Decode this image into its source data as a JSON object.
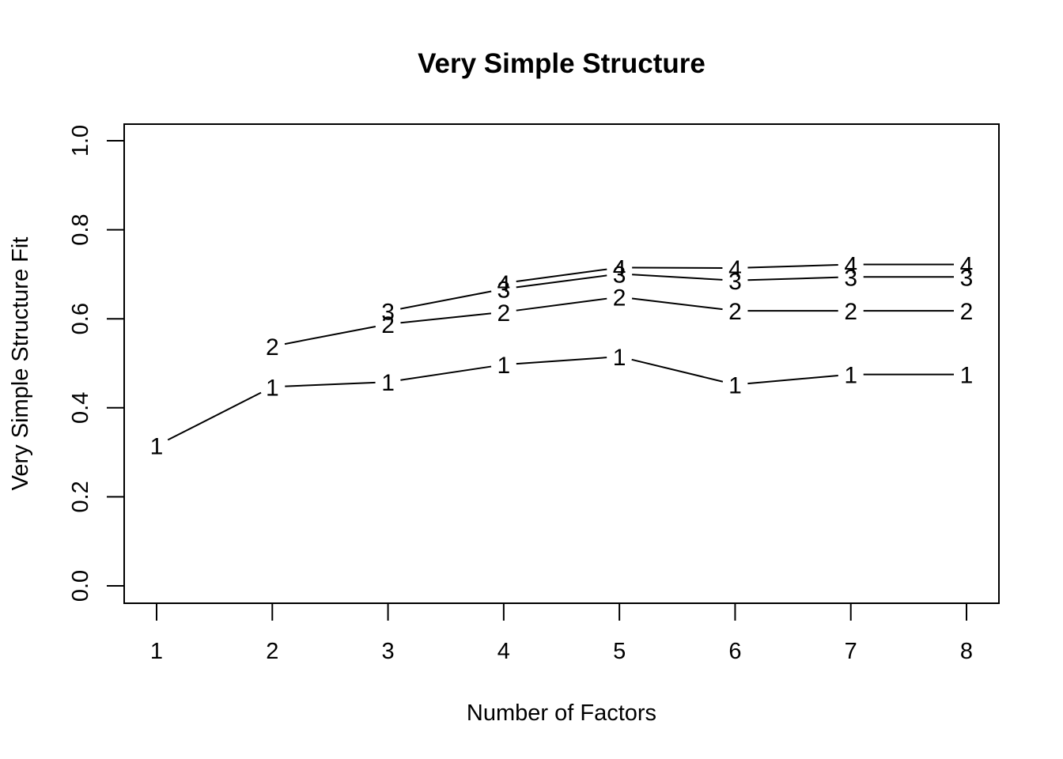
{
  "chart_data": {
    "type": "line",
    "title": "Very Simple Structure",
    "xlabel": "Number of Factors",
    "ylabel": "Very Simple Structure Fit",
    "x": [
      1,
      2,
      3,
      4,
      5,
      6,
      7,
      8
    ],
    "xlim": [
      1,
      8
    ],
    "ylim": [
      0.0,
      1.0
    ],
    "xticks": [
      "1",
      "2",
      "3",
      "4",
      "5",
      "6",
      "7",
      "8"
    ],
    "yticks": [
      "0.0",
      "0.2",
      "0.4",
      "0.6",
      "0.8",
      "1.0"
    ],
    "grid": false,
    "legend": "none",
    "point_symbol": "series label digit",
    "series": [
      {
        "label": "1",
        "x": [
          1,
          2,
          3,
          4,
          5,
          6,
          7,
          8
        ],
        "values": [
          0.315,
          0.447,
          0.458,
          0.497,
          0.515,
          0.452,
          0.475,
          0.475
        ]
      },
      {
        "label": "2",
        "x": [
          2,
          3,
          4,
          5,
          6,
          7,
          8
        ],
        "values": [
          0.538,
          0.588,
          0.615,
          0.649,
          0.618,
          0.618,
          0.618
        ]
      },
      {
        "label": "3",
        "x": [
          3,
          4,
          5,
          6,
          7,
          8
        ],
        "values": [
          0.617,
          0.667,
          0.701,
          0.686,
          0.694,
          0.694
        ]
      },
      {
        "label": "4",
        "x": [
          4,
          5,
          6,
          7,
          8
        ],
        "values": [
          0.68,
          0.715,
          0.714,
          0.722,
          0.722
        ]
      }
    ]
  }
}
